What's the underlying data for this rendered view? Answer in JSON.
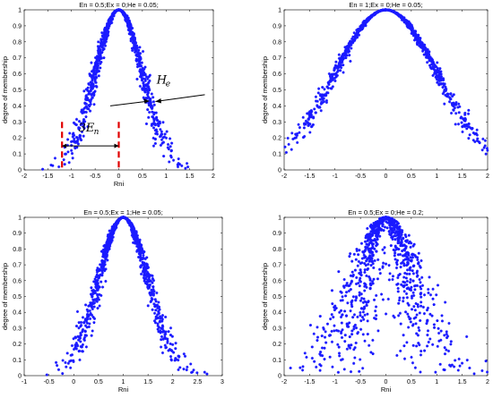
{
  "chart_data": [
    {
      "type": "scatter",
      "title": "En = 0.5;Ex = 0;He = 0.05;",
      "xlabel": "Rni",
      "ylabel": "degree of membership",
      "xlim": [
        -2,
        2
      ],
      "ylim": [
        0,
        1
      ],
      "xticks": [
        "-2",
        "-1.5",
        "-1",
        "-0.5",
        "0",
        "0.5",
        "1",
        "1.5",
        "2"
      ],
      "yticks": [
        "0",
        "0.1",
        "0.2",
        "0.3",
        "0.4",
        "0.5",
        "0.6",
        "0.7",
        "0.8",
        "0.9",
        "1"
      ],
      "params": {
        "En": 0.5,
        "Ex": 0,
        "He": 0.05
      },
      "n_drops": 1000,
      "marker_color": "#1a1aff",
      "annotations": {
        "he_label": "H",
        "he_sub": "e",
        "en_label": "3E",
        "en_sub": "n"
      }
    },
    {
      "type": "scatter",
      "title": "En = 1;Ex = 0;He = 0.05;",
      "xlabel": "",
      "ylabel": "degree of membership",
      "xlim": [
        -2,
        2
      ],
      "ylim": [
        0,
        1
      ],
      "xticks": [
        "-2",
        "-1.5",
        "-1",
        "-0.5",
        "0",
        "0.5",
        "1",
        "1.5",
        "2"
      ],
      "yticks": [
        "0",
        "0.1",
        "0.2",
        "0.3",
        "0.4",
        "0.5",
        "0.6",
        "0.7",
        "0.8",
        "0.9",
        "1"
      ],
      "params": {
        "En": 1,
        "Ex": 0,
        "He": 0.05
      },
      "n_drops": 1000,
      "marker_color": "#1a1aff"
    },
    {
      "type": "scatter",
      "title": "En = 0.5;Ex = 1;He = 0.05;",
      "xlabel": "Rni",
      "ylabel": "degree of membership",
      "xlim": [
        -1,
        3
      ],
      "ylim": [
        0,
        1
      ],
      "xticks": [
        "-1",
        "-0.5",
        "0",
        "0.5",
        "1",
        "1.5",
        "2",
        "2.5",
        "3"
      ],
      "yticks": [
        "0",
        "0.1",
        "0.2",
        "0.3",
        "0.4",
        "0.5",
        "0.6",
        "0.7",
        "0.8",
        "0.9",
        "1"
      ],
      "params": {
        "En": 0.5,
        "Ex": 1,
        "He": 0.05
      },
      "n_drops": 1000,
      "marker_color": "#1a1aff"
    },
    {
      "type": "scatter",
      "title": "En = 0.5;Ex = 0;He = 0.2;",
      "xlabel": "Rni",
      "ylabel": "degree of membership",
      "xlim": [
        -2,
        2
      ],
      "ylim": [
        0,
        1
      ],
      "xticks": [
        "-2",
        "-1.5",
        "-1",
        "-0.5",
        "0",
        "0.5",
        "1",
        "1.5",
        "2"
      ],
      "yticks": [
        "0",
        "0.1",
        "0.2",
        "0.3",
        "0.4",
        "0.5",
        "0.6",
        "0.7",
        "0.8",
        "0.9",
        "1"
      ],
      "params": {
        "En": 0.5,
        "Ex": 0,
        "He": 0.2
      },
      "n_drops": 1000,
      "marker_color": "#1a1aff"
    }
  ]
}
